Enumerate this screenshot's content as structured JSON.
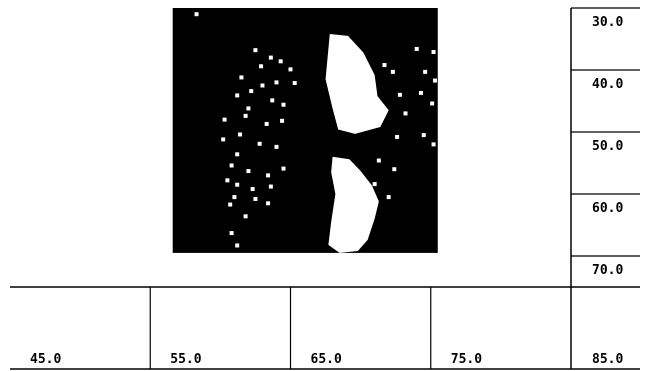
{
  "chart_data": {
    "type": "heatmap",
    "x_ticks": [
      "45.0",
      "55.0",
      "65.0",
      "75.0"
    ],
    "x_corner_label": "85.0",
    "y_ticks": [
      "30.0",
      "40.0",
      "50.0",
      "60.0",
      "70.0"
    ],
    "x_range": [
      40,
      80
    ],
    "y_range": [
      25,
      70
    ],
    "colors": {
      "on": "#000000",
      "off": "#ffffff"
    },
    "filled_band": {
      "x": [
        51.6,
        70.5
      ],
      "y": [
        25,
        64.5
      ]
    },
    "holes": [
      {
        "type": "polygon",
        "points": [
          [
            62.8,
            29.2
          ],
          [
            64.1,
            29.5
          ],
          [
            65.2,
            32.2
          ],
          [
            66.0,
            35.8
          ],
          [
            66.2,
            39.2
          ],
          [
            67.0,
            41.5
          ],
          [
            66.4,
            44.2
          ],
          [
            64.6,
            45.3
          ],
          [
            63.4,
            44.6
          ],
          [
            63.0,
            41.2
          ],
          [
            62.5,
            36.5
          ]
        ]
      },
      {
        "type": "polygon",
        "points": [
          [
            63.0,
            49.0
          ],
          [
            64.2,
            49.4
          ],
          [
            65.0,
            51.3
          ],
          [
            65.8,
            53.6
          ],
          [
            66.3,
            56.2
          ],
          [
            66.0,
            59.0
          ],
          [
            65.5,
            62.4
          ],
          [
            64.8,
            64.2
          ],
          [
            63.5,
            64.5
          ],
          [
            62.7,
            63.2
          ],
          [
            62.9,
            59.5
          ],
          [
            63.2,
            55.0
          ],
          [
            62.9,
            51.5
          ]
        ]
      },
      {
        "type": "dots",
        "points": [
          [
            53.3,
            26.0
          ],
          [
            57.5,
            31.8
          ],
          [
            58.6,
            33.0
          ],
          [
            57.9,
            34.4
          ],
          [
            59.3,
            33.6
          ],
          [
            60.0,
            34.9
          ],
          [
            56.5,
            36.2
          ],
          [
            58.0,
            37.5
          ],
          [
            59.0,
            37.0
          ],
          [
            60.3,
            37.1
          ],
          [
            56.2,
            39.1
          ],
          [
            57.2,
            38.4
          ],
          [
            58.7,
            39.9
          ],
          [
            57.0,
            41.2
          ],
          [
            59.5,
            40.6
          ],
          [
            55.3,
            43.0
          ],
          [
            56.8,
            42.4
          ],
          [
            58.3,
            43.7
          ],
          [
            59.4,
            43.2
          ],
          [
            55.2,
            46.2
          ],
          [
            56.4,
            45.4
          ],
          [
            57.8,
            46.9
          ],
          [
            59.0,
            47.4
          ],
          [
            56.2,
            48.6
          ],
          [
            55.8,
            50.4
          ],
          [
            57.0,
            51.3
          ],
          [
            58.4,
            52.0
          ],
          [
            59.5,
            50.9
          ],
          [
            55.5,
            52.8
          ],
          [
            56.2,
            53.5
          ],
          [
            57.3,
            54.2
          ],
          [
            58.6,
            53.8
          ],
          [
            56.0,
            55.5
          ],
          [
            57.5,
            55.8
          ],
          [
            58.4,
            56.5
          ],
          [
            55.7,
            56.7
          ],
          [
            56.8,
            58.6
          ],
          [
            55.8,
            61.3
          ],
          [
            56.2,
            63.3
          ],
          [
            66.7,
            34.2
          ],
          [
            67.3,
            35.3
          ],
          [
            67.8,
            39.0
          ],
          [
            68.2,
            42.0
          ],
          [
            67.6,
            45.8
          ],
          [
            66.3,
            49.6
          ],
          [
            67.4,
            51.0
          ],
          [
            66.0,
            53.4
          ],
          [
            67.0,
            55.5
          ],
          [
            69.0,
            31.6
          ],
          [
            70.2,
            32.1
          ],
          [
            69.6,
            35.3
          ],
          [
            70.3,
            36.7
          ],
          [
            69.3,
            38.7
          ],
          [
            70.1,
            40.4
          ],
          [
            69.5,
            45.5
          ],
          [
            70.2,
            47.0
          ]
        ]
      }
    ]
  }
}
